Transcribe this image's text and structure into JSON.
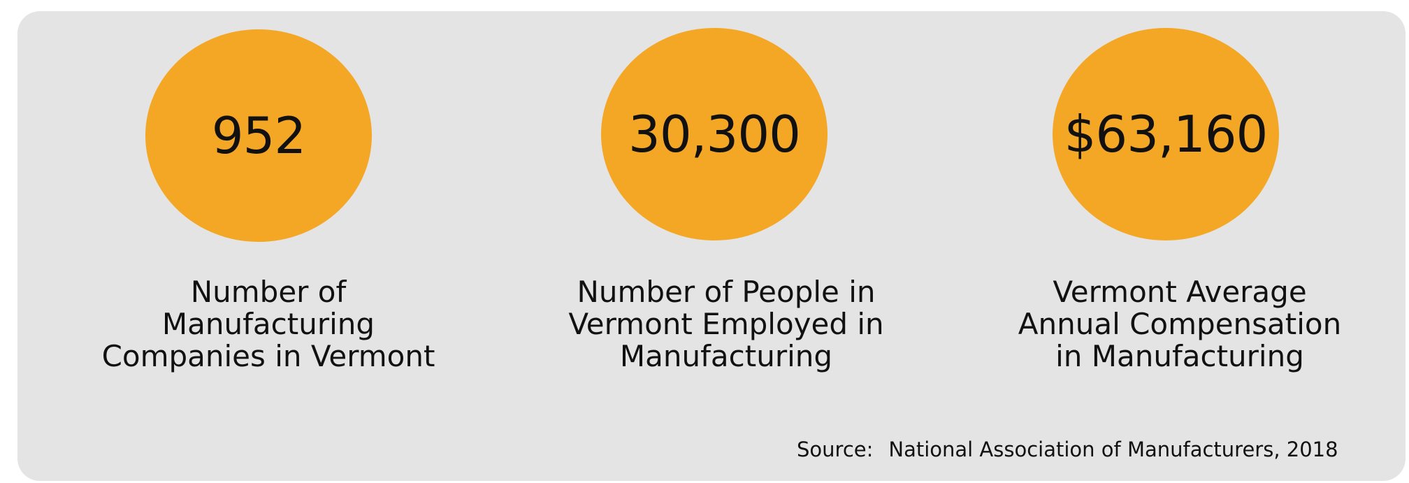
{
  "colors": {
    "panel_background": "#e4e4e4",
    "circle_fill": "#f4a625",
    "text": "#111111"
  },
  "stats": [
    {
      "value": "952",
      "label_lines": [
        "Number of",
        "Manufacturing",
        "Companies in Vermont"
      ]
    },
    {
      "value": "30,300",
      "label_lines": [
        "Number of People in",
        "Vermont Employed in",
        "Manufacturing"
      ]
    },
    {
      "value": "$63,160",
      "label_lines": [
        "Vermont Average",
        "Annual Compensation",
        "in Manufacturing"
      ]
    }
  ],
  "source": {
    "prefix": "Source:",
    "text": "National Association of Manufacturers, 2018"
  }
}
